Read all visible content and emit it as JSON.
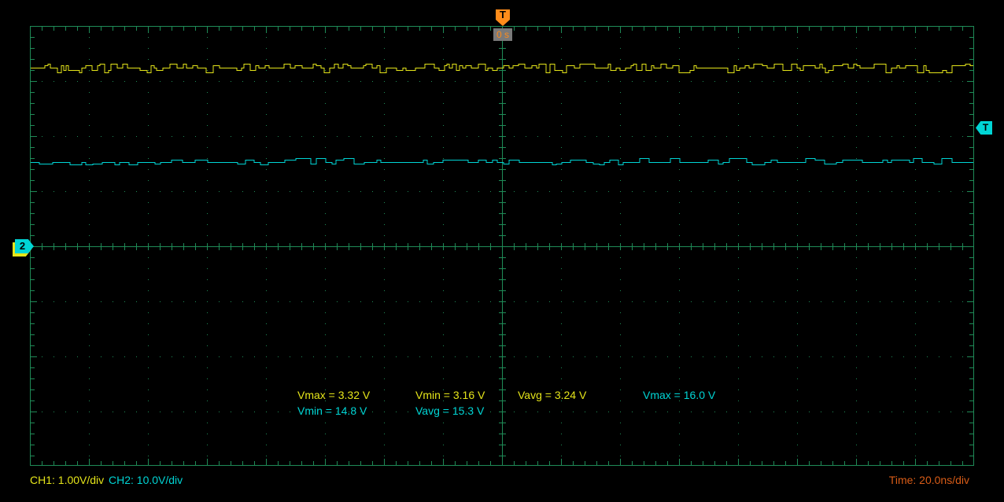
{
  "colors": {
    "background": "#000000",
    "grid": "#1f8b57",
    "ch1": "#e5e51a",
    "ch2": "#00d5d5",
    "trigger_orange": "#ff8c1a",
    "time_text": "#d85c17",
    "badge_bg": "#7a7a7a",
    "marker_glyph": "#000000"
  },
  "trigger": {
    "flag_label": "T",
    "time_label": "0 s",
    "level_flag_label": "T"
  },
  "markers": {
    "ch2_ground_label": "2"
  },
  "measurements": [
    {
      "channel": "CH1",
      "text": "Vmax = 3.32 V"
    },
    {
      "channel": "CH1",
      "text": "Vmin = 3.16 V"
    },
    {
      "channel": "CH1",
      "text": "Vavg = 3.24 V"
    },
    {
      "channel": "CH2",
      "text": "Vmax = 16.0 V"
    },
    {
      "channel": "CH2",
      "text": "Vmin = 14.8 V"
    },
    {
      "channel": "CH2",
      "text": "Vavg = 15.3 V"
    }
  ],
  "status_bar": {
    "ch1_label": "CH1: 1.00V/div",
    "ch2_label": "CH2: 10.0V/div",
    "time_label": "Time: 20.0ns/div"
  },
  "chart_data": {
    "type": "line",
    "title": "Oscilloscope capture: two noisy flat traces",
    "x_axis": {
      "timebase_per_div": "20.0ns",
      "divisions": 16,
      "trigger_time": "0 s",
      "trigger_position": "center"
    },
    "y_axis": {
      "divisions": 8,
      "units": "V",
      "grid": "dotted divisions with solid center crosshair and border"
    },
    "legend_position": "status bar bottom",
    "series": [
      {
        "name": "CH1",
        "color": "#e5e51a",
        "volts_per_div": 1.0,
        "scale_label": "1.00V/div",
        "vmax": 3.32,
        "vmin": 3.16,
        "vavg": 3.24,
        "ground_div_from_center": 0,
        "description": "flat line at ~3.24 V with small random square-step noise between 3.16 V and 3.32 V",
        "waveform": {
          "seed": 9,
          "seg_min": 3,
          "seg_max": 9,
          "levels": [
            0,
            1,
            -1,
            2,
            -2
          ],
          "weights": [
            0.32,
            0.22,
            0.2,
            0.15,
            0.11
          ]
        }
      },
      {
        "name": "CH2",
        "color": "#00d5d5",
        "volts_per_div": 10.0,
        "scale_label": "10.0V/div",
        "vmax": 16.0,
        "vmin": 14.8,
        "vavg": 15.3,
        "ground_div_from_center": 0,
        "description": "flat line at ~15.3 V with sparse small square-step noise between 14.8 V and 16.0 V",
        "waveform": {
          "seed": 31,
          "seg_min": 4,
          "seg_max": 16,
          "levels": [
            0,
            1,
            -1,
            2,
            -2
          ],
          "weights": [
            0.54,
            0.2,
            0.12,
            0.1,
            0.04
          ]
        }
      }
    ]
  }
}
